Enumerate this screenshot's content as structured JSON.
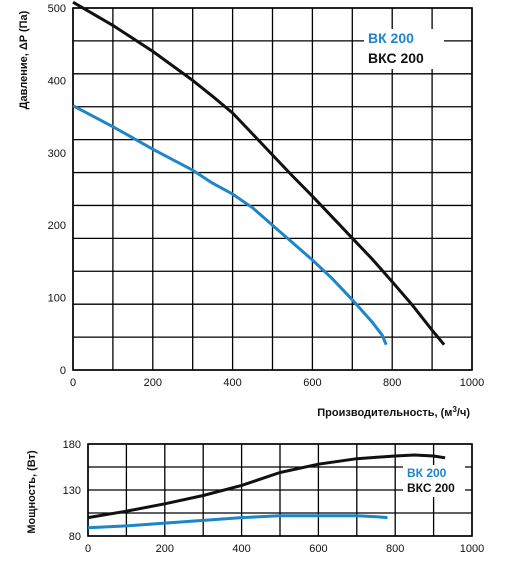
{
  "chart_data": [
    {
      "type": "line",
      "xlabel": "Производительность, (м³/ч)",
      "xlabel_main": "Производительность, (м",
      "xlabel_sup": "3",
      "xlabel_end": "/ч)",
      "ylabel": "Давление, ΔP (Па)",
      "xlim": [
        0,
        1000
      ],
      "ylim": [
        0,
        500
      ],
      "xticks": [
        "0",
        "200",
        "400",
        "600",
        "800",
        "1000"
      ],
      "yticks": [
        "0",
        "100",
        "200",
        "300",
        "400",
        "500"
      ],
      "grid": true,
      "legend_position": "top-right",
      "series": [
        {
          "name": "ВК 200",
          "color": "#1e86c8",
          "points": [
            [
              0,
              365
            ],
            [
              100,
              336
            ],
            [
              200,
              305
            ],
            [
              300,
              276
            ],
            [
              350,
              258
            ],
            [
              400,
              243
            ],
            [
              450,
              224
            ],
            [
              500,
              200
            ],
            [
              550,
              176
            ],
            [
              600,
              152
            ],
            [
              650,
              126
            ],
            [
              700,
              97
            ],
            [
              750,
              66
            ],
            [
              775,
              48
            ],
            [
              785,
              35
            ]
          ]
        },
        {
          "name": "ВКС 200",
          "color": "#111111",
          "points": [
            [
              0,
              508
            ],
            [
              100,
              476
            ],
            [
              200,
              440
            ],
            [
              300,
              400
            ],
            [
              350,
              378
            ],
            [
              400,
              355
            ],
            [
              450,
              326
            ],
            [
              500,
              297
            ],
            [
              550,
              268
            ],
            [
              600,
              240
            ],
            [
              650,
              211
            ],
            [
              700,
              182
            ],
            [
              750,
              153
            ],
            [
              800,
              122
            ],
            [
              850,
              90
            ],
            [
              900,
              55
            ],
            [
              930,
              35
            ]
          ]
        }
      ]
    },
    {
      "type": "line",
      "ylabel": "Мощность, (Вт)",
      "xlim": [
        0,
        1000
      ],
      "ylim": [
        80,
        180
      ],
      "xticks": [
        "0",
        "200",
        "400",
        "600",
        "800",
        "1000"
      ],
      "yticks": [
        "80",
        "130",
        "180"
      ],
      "grid": true,
      "legend_position": "right",
      "series": [
        {
          "name": "ВК 200",
          "color": "#1e86c8",
          "points": [
            [
              0,
              89
            ],
            [
              100,
              91
            ],
            [
              200,
              94
            ],
            [
              300,
              97
            ],
            [
              400,
              100
            ],
            [
              500,
              102
            ],
            [
              600,
              102
            ],
            [
              700,
              102
            ],
            [
              750,
              101
            ],
            [
              780,
              100
            ]
          ]
        },
        {
          "name": "ВКС 200",
          "color": "#111111",
          "points": [
            [
              0,
              100
            ],
            [
              100,
              107
            ],
            [
              200,
              115
            ],
            [
              300,
              124
            ],
            [
              400,
              135
            ],
            [
              500,
              149
            ],
            [
              600,
              158
            ],
            [
              700,
              164
            ],
            [
              800,
              167
            ],
            [
              850,
              168
            ],
            [
              900,
              167
            ],
            [
              930,
              165
            ]
          ]
        }
      ]
    }
  ]
}
